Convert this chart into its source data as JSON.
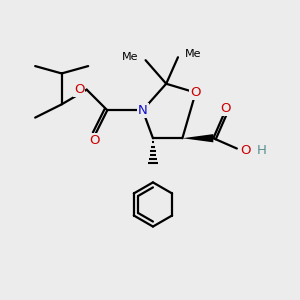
{
  "bg_color": "#ececec",
  "bond_color": "#000000",
  "bond_width": 1.6,
  "N_color": "#1010cc",
  "O_color": "#cc0000",
  "H_color": "#5a9090",
  "figsize": [
    3.0,
    3.0
  ],
  "dpi": 100,
  "xlim": [
    0,
    10
  ],
  "ylim": [
    0,
    10
  ]
}
